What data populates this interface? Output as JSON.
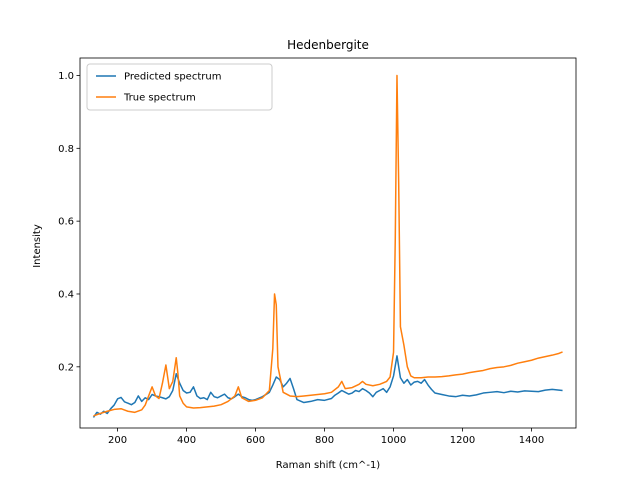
{
  "chart_data": {
    "type": "line",
    "title": "Hedenbergite",
    "xlabel": "Raman shift (cm^-1)",
    "ylabel": "Intensity",
    "xlim": [
      91,
      1529
    ],
    "ylim": [
      0.032,
      1.048
    ],
    "xticks": [
      200,
      400,
      600,
      800,
      1000,
      1200,
      1400
    ],
    "yticks": [
      0.2,
      0.4,
      0.6,
      0.8,
      1.0
    ],
    "xtick_labels": [
      "200",
      "400",
      "600",
      "800",
      "1000",
      "1200",
      "1400"
    ],
    "ytick_labels": [
      "0.2",
      "0.4",
      "0.6",
      "0.8",
      "1.0"
    ],
    "grid": false,
    "legend_position": "top-left",
    "series": [
      {
        "name": "Predicted spectrum",
        "color": "#1f77b4",
        "points": [
          [
            130,
            0.061
          ],
          [
            140,
            0.075
          ],
          [
            150,
            0.07
          ],
          [
            160,
            0.078
          ],
          [
            170,
            0.072
          ],
          [
            180,
            0.085
          ],
          [
            190,
            0.095
          ],
          [
            200,
            0.112
          ],
          [
            210,
            0.116
          ],
          [
            220,
            0.104
          ],
          [
            230,
            0.1
          ],
          [
            240,
            0.096
          ],
          [
            250,
            0.102
          ],
          [
            260,
            0.12
          ],
          [
            270,
            0.105
          ],
          [
            280,
            0.115
          ],
          [
            290,
            0.11
          ],
          [
            300,
            0.124
          ],
          [
            310,
            0.12
          ],
          [
            320,
            0.118
          ],
          [
            330,
            0.115
          ],
          [
            340,
            0.112
          ],
          [
            350,
            0.118
          ],
          [
            360,
            0.135
          ],
          [
            370,
            0.181
          ],
          [
            380,
            0.155
          ],
          [
            390,
            0.135
          ],
          [
            400,
            0.128
          ],
          [
            410,
            0.13
          ],
          [
            420,
            0.145
          ],
          [
            430,
            0.12
          ],
          [
            440,
            0.113
          ],
          [
            450,
            0.115
          ],
          [
            460,
            0.11
          ],
          [
            470,
            0.13
          ],
          [
            480,
            0.118
          ],
          [
            490,
            0.115
          ],
          [
            500,
            0.12
          ],
          [
            510,
            0.125
          ],
          [
            520,
            0.115
          ],
          [
            530,
            0.112
          ],
          [
            540,
            0.118
          ],
          [
            550,
            0.125
          ],
          [
            560,
            0.118
          ],
          [
            570,
            0.115
          ],
          [
            580,
            0.11
          ],
          [
            590,
            0.108
          ],
          [
            600,
            0.11
          ],
          [
            620,
            0.118
          ],
          [
            640,
            0.13
          ],
          [
            650,
            0.15
          ],
          [
            660,
            0.172
          ],
          [
            670,
            0.165
          ],
          [
            680,
            0.145
          ],
          [
            690,
            0.155
          ],
          [
            700,
            0.168
          ],
          [
            710,
            0.14
          ],
          [
            720,
            0.11
          ],
          [
            740,
            0.102
          ],
          [
            760,
            0.105
          ],
          [
            780,
            0.11
          ],
          [
            800,
            0.108
          ],
          [
            820,
            0.113
          ],
          [
            830,
            0.122
          ],
          [
            840,
            0.128
          ],
          [
            850,
            0.135
          ],
          [
            860,
            0.13
          ],
          [
            870,
            0.125
          ],
          [
            880,
            0.128
          ],
          [
            890,
            0.135
          ],
          [
            900,
            0.132
          ],
          [
            910,
            0.14
          ],
          [
            920,
            0.135
          ],
          [
            930,
            0.128
          ],
          [
            940,
            0.118
          ],
          [
            950,
            0.13
          ],
          [
            960,
            0.135
          ],
          [
            970,
            0.14
          ],
          [
            980,
            0.13
          ],
          [
            990,
            0.145
          ],
          [
            1000,
            0.175
          ],
          [
            1010,
            0.23
          ],
          [
            1020,
            0.17
          ],
          [
            1030,
            0.155
          ],
          [
            1040,
            0.165
          ],
          [
            1050,
            0.15
          ],
          [
            1060,
            0.158
          ],
          [
            1070,
            0.16
          ],
          [
            1080,
            0.155
          ],
          [
            1090,
            0.165
          ],
          [
            1100,
            0.15
          ],
          [
            1110,
            0.138
          ],
          [
            1120,
            0.128
          ],
          [
            1140,
            0.124
          ],
          [
            1160,
            0.12
          ],
          [
            1180,
            0.118
          ],
          [
            1200,
            0.122
          ],
          [
            1220,
            0.12
          ],
          [
            1240,
            0.123
          ],
          [
            1260,
            0.128
          ],
          [
            1280,
            0.13
          ],
          [
            1300,
            0.132
          ],
          [
            1320,
            0.129
          ],
          [
            1340,
            0.133
          ],
          [
            1360,
            0.131
          ],
          [
            1380,
            0.134
          ],
          [
            1400,
            0.133
          ],
          [
            1420,
            0.132
          ],
          [
            1440,
            0.136
          ],
          [
            1460,
            0.138
          ],
          [
            1480,
            0.136
          ],
          [
            1490,
            0.135
          ]
        ]
      },
      {
        "name": "True spectrum",
        "color": "#ff7f0e",
        "points": [
          [
            130,
            0.065
          ],
          [
            150,
            0.072
          ],
          [
            170,
            0.078
          ],
          [
            190,
            0.083
          ],
          [
            210,
            0.085
          ],
          [
            230,
            0.078
          ],
          [
            250,
            0.075
          ],
          [
            270,
            0.082
          ],
          [
            280,
            0.095
          ],
          [
            290,
            0.12
          ],
          [
            300,
            0.145
          ],
          [
            310,
            0.12
          ],
          [
            320,
            0.113
          ],
          [
            330,
            0.155
          ],
          [
            340,
            0.205
          ],
          [
            350,
            0.14
          ],
          [
            360,
            0.16
          ],
          [
            370,
            0.225
          ],
          [
            375,
            0.18
          ],
          [
            380,
            0.12
          ],
          [
            390,
            0.1
          ],
          [
            400,
            0.09
          ],
          [
            420,
            0.087
          ],
          [
            440,
            0.088
          ],
          [
            460,
            0.09
          ],
          [
            480,
            0.092
          ],
          [
            500,
            0.096
          ],
          [
            520,
            0.105
          ],
          [
            540,
            0.12
          ],
          [
            550,
            0.145
          ],
          [
            560,
            0.115
          ],
          [
            580,
            0.105
          ],
          [
            600,
            0.108
          ],
          [
            620,
            0.115
          ],
          [
            640,
            0.135
          ],
          [
            650,
            0.25
          ],
          [
            655,
            0.4
          ],
          [
            660,
            0.37
          ],
          [
            665,
            0.2
          ],
          [
            680,
            0.13
          ],
          [
            700,
            0.12
          ],
          [
            720,
            0.118
          ],
          [
            740,
            0.12
          ],
          [
            760,
            0.122
          ],
          [
            780,
            0.124
          ],
          [
            800,
            0.126
          ],
          [
            820,
            0.13
          ],
          [
            840,
            0.145
          ],
          [
            850,
            0.16
          ],
          [
            860,
            0.14
          ],
          [
            880,
            0.143
          ],
          [
            900,
            0.152
          ],
          [
            910,
            0.16
          ],
          [
            920,
            0.152
          ],
          [
            940,
            0.148
          ],
          [
            960,
            0.152
          ],
          [
            980,
            0.16
          ],
          [
            990,
            0.172
          ],
          [
            1000,
            0.24
          ],
          [
            1005,
            0.55
          ],
          [
            1010,
            1.0
          ],
          [
            1015,
            0.7
          ],
          [
            1020,
            0.31
          ],
          [
            1030,
            0.26
          ],
          [
            1040,
            0.2
          ],
          [
            1050,
            0.175
          ],
          [
            1060,
            0.17
          ],
          [
            1080,
            0.17
          ],
          [
            1100,
            0.172
          ],
          [
            1120,
            0.172
          ],
          [
            1140,
            0.173
          ],
          [
            1160,
            0.175
          ],
          [
            1180,
            0.178
          ],
          [
            1200,
            0.18
          ],
          [
            1220,
            0.184
          ],
          [
            1240,
            0.187
          ],
          [
            1260,
            0.19
          ],
          [
            1280,
            0.195
          ],
          [
            1300,
            0.198
          ],
          [
            1320,
            0.2
          ],
          [
            1340,
            0.204
          ],
          [
            1360,
            0.21
          ],
          [
            1380,
            0.214
          ],
          [
            1400,
            0.218
          ],
          [
            1420,
            0.224
          ],
          [
            1440,
            0.228
          ],
          [
            1460,
            0.232
          ],
          [
            1480,
            0.237
          ],
          [
            1490,
            0.241
          ]
        ]
      }
    ]
  }
}
